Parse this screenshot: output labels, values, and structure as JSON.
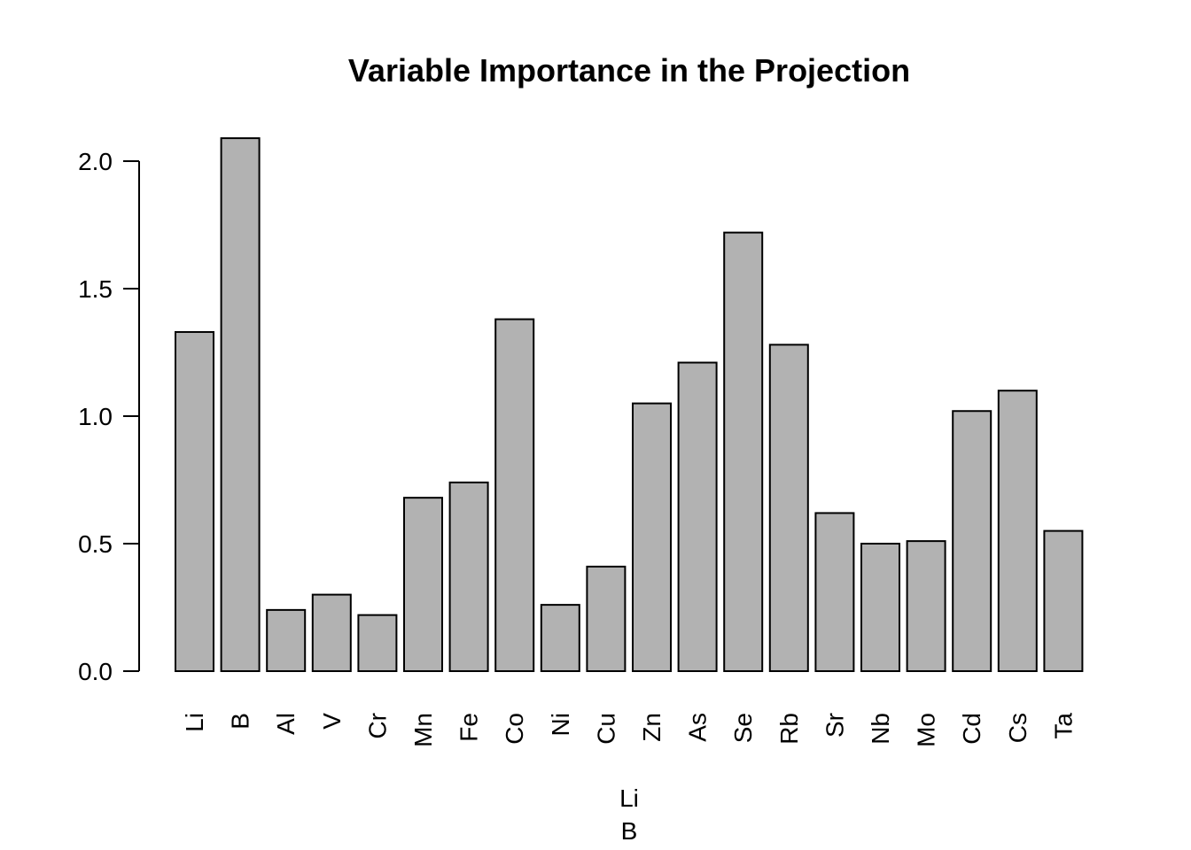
{
  "chart_data": {
    "type": "bar",
    "title": "Variable Importance in the Projection",
    "xlabel_lines": [
      "Li",
      "B"
    ],
    "ylabel": "",
    "ylim": [
      0,
      2.0
    ],
    "yticks": [
      0.0,
      0.5,
      1.0,
      1.5,
      2.0
    ],
    "ytick_labels": [
      "0.0",
      "0.5",
      "1.0",
      "1.5",
      "2.0"
    ],
    "categories": [
      "Li",
      "B",
      "Al",
      "V",
      "Cr",
      "Mn",
      "Fe",
      "Co",
      "Ni",
      "Cu",
      "Zn",
      "As",
      "Se",
      "Rb",
      "Sr",
      "Nb",
      "Mo",
      "Cd",
      "Cs",
      "Ta"
    ],
    "values": [
      1.33,
      2.09,
      0.24,
      0.3,
      0.22,
      0.68,
      0.74,
      1.38,
      0.26,
      0.41,
      1.05,
      1.21,
      1.72,
      1.28,
      0.62,
      0.5,
      0.51,
      1.02,
      1.1,
      0.55
    ],
    "bar_color": "#b2b2b2",
    "grid": false,
    "legend": "none"
  }
}
